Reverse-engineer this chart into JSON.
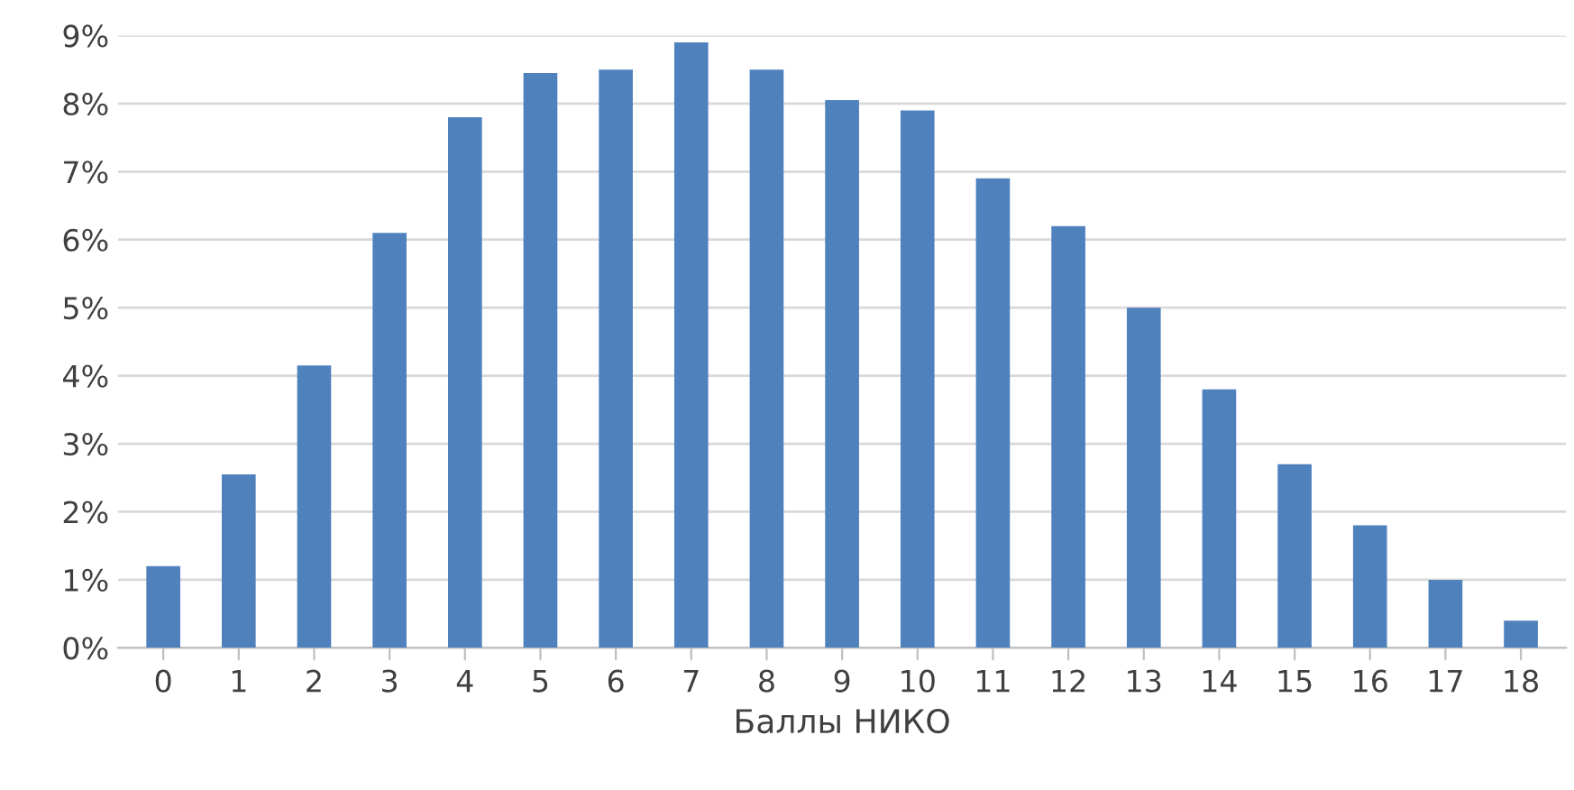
{
  "chart_data": {
    "type": "bar",
    "xlabel": "Баллы НИКО",
    "categories": [
      "0",
      "1",
      "2",
      "3",
      "4",
      "5",
      "6",
      "7",
      "8",
      "9",
      "10",
      "11",
      "12",
      "13",
      "14",
      "15",
      "16",
      "17",
      "18"
    ],
    "values": [
      1.2,
      2.55,
      4.15,
      6.1,
      7.8,
      8.45,
      8.5,
      8.9,
      8.5,
      8.05,
      7.9,
      6.9,
      6.2,
      5.0,
      3.8,
      2.7,
      1.8,
      1.0,
      0.4
    ],
    "color": "#4f81bd",
    "ylim": [
      0,
      9
    ],
    "yticks": [
      {
        "value": 0,
        "label": "0%"
      },
      {
        "value": 1,
        "label": "1%"
      },
      {
        "value": 2,
        "label": "2%"
      },
      {
        "value": 3,
        "label": "3%"
      },
      {
        "value": 4,
        "label": "4%"
      },
      {
        "value": 5,
        "label": "5%"
      },
      {
        "value": 6,
        "label": "6%"
      },
      {
        "value": 7,
        "label": "7%"
      },
      {
        "value": 8,
        "label": "8%"
      },
      {
        "value": 9,
        "label": "9%"
      }
    ],
    "grid": "y"
  }
}
